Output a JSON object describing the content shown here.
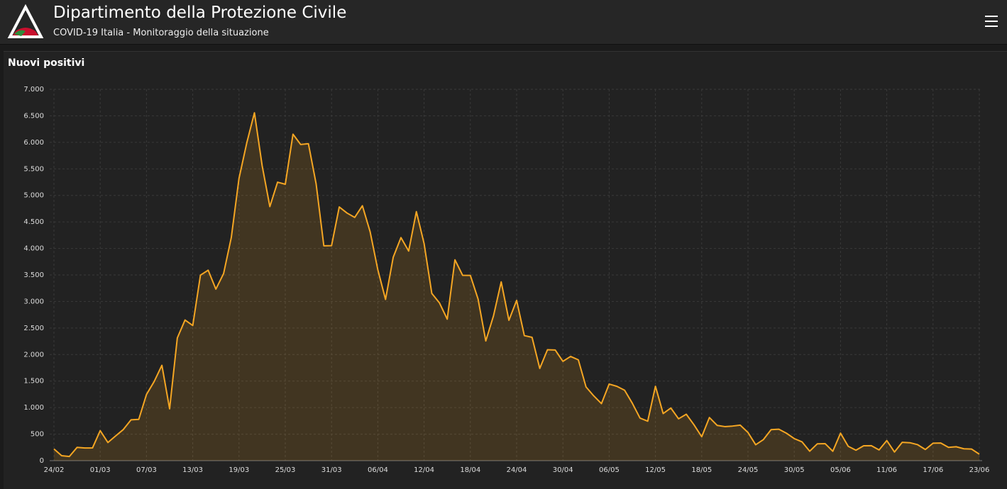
{
  "header": {
    "title": "Dipartimento della Protezione Civile",
    "subtitle": "COVID-19 Italia - Monitoraggio della situazione"
  },
  "chart_data": {
    "type": "area",
    "title": "Nuovi positivi",
    "color": "#f5a623",
    "grid": true,
    "categories": [
      "24/02",
      null,
      null,
      null,
      null,
      null,
      "01/03",
      null,
      null,
      null,
      null,
      null,
      "07/03",
      null,
      null,
      null,
      null,
      null,
      "13/03",
      null,
      null,
      null,
      null,
      null,
      "19/03",
      null,
      null,
      null,
      null,
      null,
      "25/03",
      null,
      null,
      null,
      null,
      null,
      "31/03",
      null,
      null,
      null,
      null,
      null,
      "06/04",
      null,
      null,
      null,
      null,
      null,
      "12/04",
      null,
      null,
      null,
      null,
      null,
      "18/04",
      null,
      null,
      null,
      null,
      null,
      "24/04",
      null,
      null,
      null,
      null,
      null,
      "30/04",
      null,
      null,
      null,
      null,
      null,
      "06/05",
      null,
      null,
      null,
      null,
      null,
      "12/05",
      null,
      null,
      null,
      null,
      null,
      "18/05",
      null,
      null,
      null,
      null,
      null,
      "24/05",
      null,
      null,
      null,
      null,
      null,
      "30/05",
      null,
      null,
      null,
      null,
      null,
      "05/06",
      null,
      null,
      null,
      null,
      null,
      "11/06",
      null,
      null,
      null,
      null,
      null,
      "17/06",
      null,
      null,
      null,
      null,
      null,
      "23/06"
    ],
    "values": [
      221,
      93,
      78,
      250,
      238,
      240,
      566,
      342,
      466,
      587,
      769,
      778,
      1247,
      1492,
      1797,
      977,
      2313,
      2651,
      2547,
      3497,
      3590,
      3233,
      3526,
      4207,
      5322,
      5986,
      6557,
      5560,
      4789,
      5249,
      5210,
      6153,
      5959,
      5974,
      5217,
      4050,
      4053,
      4782,
      4668,
      4585,
      4805,
      4316,
      3599,
      3039,
      3836,
      4204,
      3951,
      4694,
      4092,
      3153,
      2972,
      2667,
      3786,
      3493,
      3491,
      3047,
      2256,
      2729,
      3370,
      2646,
      3021,
      2357,
      2324,
      1739,
      2091,
      2086,
      1872,
      1965,
      1900,
      1389,
      1221,
      1075,
      1444,
      1401,
      1327,
      1083,
      802,
      744,
      1402,
      888,
      992,
      789,
      875,
      675,
      451,
      813,
      665,
      642,
      652,
      669,
      531,
      300,
      397,
      584,
      593,
      516,
      416,
      355,
      178,
      318,
      321,
      177,
      518,
      270,
      197,
      280,
      283,
      202,
      379,
      163,
      346,
      338,
      301,
      210,
      329,
      333,
      251,
      262,
      224,
      218,
      122
    ],
    "ylim": [
      0,
      7000
    ],
    "yticks": [
      0,
      500,
      {
        "value": 1000,
        "label": "1.000"
      },
      {
        "value": 1500,
        "label": "1.500"
      },
      {
        "value": 2000,
        "label": "2.000"
      },
      {
        "value": 2500,
        "label": "2.500"
      },
      {
        "value": 3000,
        "label": "3.000"
      },
      {
        "value": 3500,
        "label": "3.500"
      },
      {
        "value": 4000,
        "label": "4.000"
      },
      {
        "value": 4500,
        "label": "4.500"
      },
      {
        "value": 5000,
        "label": "5.000"
      },
      {
        "value": 5500,
        "label": "5.500"
      },
      {
        "value": 6000,
        "label": "6.000"
      },
      {
        "value": 6500,
        "label": "6.500"
      },
      {
        "value": 7000,
        "label": "7.000"
      }
    ]
  }
}
